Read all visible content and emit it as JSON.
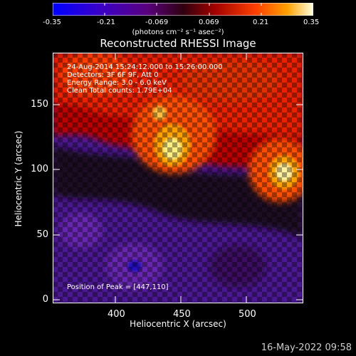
{
  "colorbar": {
    "ticks": [
      "-0.35",
      "-0.21",
      "-0.069",
      "0.069",
      "0.21",
      "0.35"
    ],
    "units": "(photons cm⁻² s⁻¹ asec⁻²)"
  },
  "title": "Reconstructed RHESSI Image",
  "info": {
    "time": "24-Aug-2014 15:24:12.000 to 15:26:00.000",
    "detectors": "Detectors: 3F 6F 9F, Att 0",
    "energy": "Energy Range: 3.0 - 6.0 keV",
    "clean": "Clean     Total counts: 1.79E+04",
    "peak": "Position of Peak = [447,110]"
  },
  "axes": {
    "xlabel": "Heliocentric X (arcsec)",
    "ylabel": "Heliocentric Y (arcsec)",
    "xticks": [
      "400",
      "450",
      "500"
    ],
    "yticks": [
      "150",
      "100",
      "50",
      "0"
    ]
  },
  "footer": {
    "date": "16-May-2022 09:58"
  },
  "colors": {
    "min": "#0000ff",
    "mid": "#c00000",
    "max": "#ffff60",
    "bg": "#000000"
  }
}
